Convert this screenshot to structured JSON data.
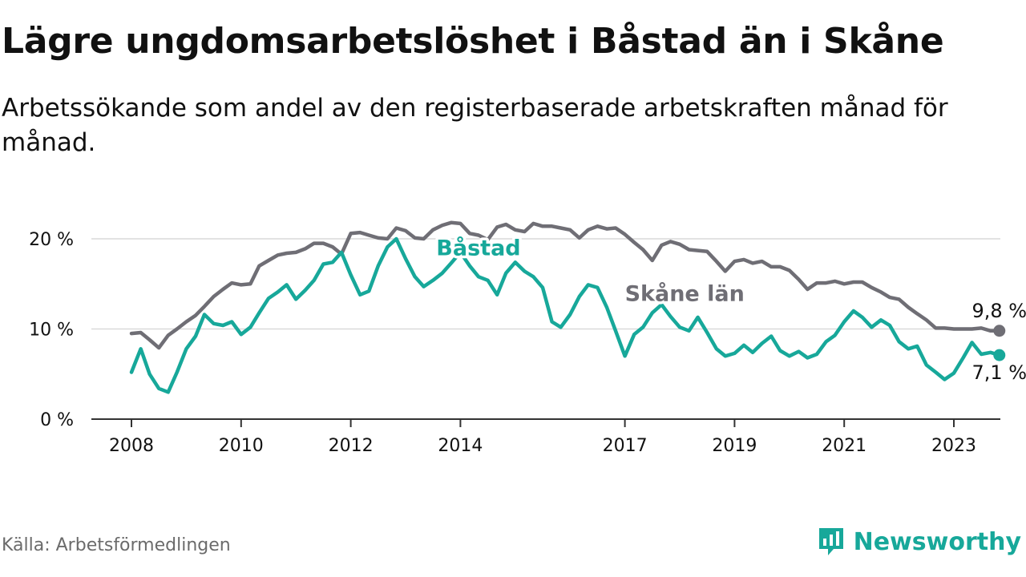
{
  "title": "Lägre ungdomsarbetslöshet i Båstad än i Skåne",
  "subtitle": "Arbetssökande som andel av den registerbaserade arbetskraften månad för månad.",
  "source": "Källa: Arbetsförmedlingen",
  "brand": {
    "name": "Newsworthy",
    "icon": "newsworthy-logo-icon",
    "color": "#17a89a"
  },
  "colors": {
    "bastad": "#17a89a",
    "skane": "#6f6e75",
    "grid": "#d9d9d9",
    "axis": "#333333",
    "text": "#111111"
  },
  "chart_data": {
    "type": "line",
    "title": "Lägre ungdomsarbetslöshet i Båstad än i Skåne",
    "xlabel": "",
    "ylabel": "",
    "xlim": [
      2007.9,
      2023.9
    ],
    "ylim": [
      0,
      22
    ],
    "x_ticks": [
      2008,
      2010,
      2012,
      2014,
      2017,
      2019,
      2021,
      2023
    ],
    "y_ticks": [
      0,
      10,
      20
    ],
    "y_tick_labels": [
      "0 %",
      "10 %",
      "20 %"
    ],
    "grid": true,
    "series": [
      {
        "name": "Skåne län",
        "label": "Skåne län",
        "color": "#6f6e75",
        "end_label": "9,8 %",
        "points": [
          [
            2008.0,
            9.5
          ],
          [
            2008.17,
            9.6
          ],
          [
            2008.33,
            8.8
          ],
          [
            2008.5,
            7.9
          ],
          [
            2008.67,
            9.3
          ],
          [
            2008.83,
            10.0
          ],
          [
            2009.0,
            10.8
          ],
          [
            2009.17,
            11.5
          ],
          [
            2009.33,
            12.5
          ],
          [
            2009.5,
            13.6
          ],
          [
            2009.67,
            14.4
          ],
          [
            2009.83,
            15.1
          ],
          [
            2010.0,
            14.9
          ],
          [
            2010.17,
            15.0
          ],
          [
            2010.33,
            17.0
          ],
          [
            2010.5,
            17.6
          ],
          [
            2010.67,
            18.2
          ],
          [
            2010.83,
            18.4
          ],
          [
            2011.0,
            18.5
          ],
          [
            2011.17,
            18.9
          ],
          [
            2011.33,
            19.5
          ],
          [
            2011.5,
            19.5
          ],
          [
            2011.67,
            19.1
          ],
          [
            2011.83,
            18.3
          ],
          [
            2012.0,
            20.6
          ],
          [
            2012.17,
            20.7
          ],
          [
            2012.33,
            20.4
          ],
          [
            2012.5,
            20.1
          ],
          [
            2012.67,
            20.0
          ],
          [
            2012.83,
            21.2
          ],
          [
            2013.0,
            20.9
          ],
          [
            2013.17,
            20.1
          ],
          [
            2013.33,
            20.0
          ],
          [
            2013.5,
            21.0
          ],
          [
            2013.67,
            21.5
          ],
          [
            2013.83,
            21.8
          ],
          [
            2014.0,
            21.7
          ],
          [
            2014.17,
            20.6
          ],
          [
            2014.33,
            20.4
          ],
          [
            2014.5,
            19.9
          ],
          [
            2014.67,
            21.3
          ],
          [
            2014.83,
            21.6
          ],
          [
            2015.0,
            21.0
          ],
          [
            2015.17,
            20.8
          ],
          [
            2015.33,
            21.7
          ],
          [
            2015.5,
            21.4
          ],
          [
            2015.67,
            21.4
          ],
          [
            2015.83,
            21.2
          ],
          [
            2016.0,
            21.0
          ],
          [
            2016.17,
            20.1
          ],
          [
            2016.33,
            21.0
          ],
          [
            2016.5,
            21.4
          ],
          [
            2016.67,
            21.1
          ],
          [
            2016.83,
            21.2
          ],
          [
            2017.0,
            20.5
          ],
          [
            2017.17,
            19.6
          ],
          [
            2017.33,
            18.8
          ],
          [
            2017.5,
            17.6
          ],
          [
            2017.67,
            19.3
          ],
          [
            2017.83,
            19.7
          ],
          [
            2018.0,
            19.4
          ],
          [
            2018.17,
            18.8
          ],
          [
            2018.33,
            18.7
          ],
          [
            2018.5,
            18.6
          ],
          [
            2018.67,
            17.5
          ],
          [
            2018.83,
            16.4
          ],
          [
            2019.0,
            17.5
          ],
          [
            2019.17,
            17.7
          ],
          [
            2019.33,
            17.3
          ],
          [
            2019.5,
            17.5
          ],
          [
            2019.67,
            16.9
          ],
          [
            2019.83,
            16.9
          ],
          [
            2020.0,
            16.5
          ],
          [
            2020.17,
            15.5
          ],
          [
            2020.33,
            14.4
          ],
          [
            2020.5,
            15.1
          ],
          [
            2020.67,
            15.1
          ],
          [
            2020.83,
            15.3
          ],
          [
            2021.0,
            15.0
          ],
          [
            2021.17,
            15.2
          ],
          [
            2021.33,
            15.2
          ],
          [
            2021.5,
            14.6
          ],
          [
            2021.67,
            14.1
          ],
          [
            2021.83,
            13.5
          ],
          [
            2022.0,
            13.3
          ],
          [
            2022.17,
            12.4
          ],
          [
            2022.33,
            11.7
          ],
          [
            2022.5,
            11.0
          ],
          [
            2022.67,
            10.1
          ],
          [
            2022.83,
            10.1
          ],
          [
            2023.0,
            10.0
          ],
          [
            2023.17,
            10.0
          ],
          [
            2023.33,
            10.0
          ],
          [
            2023.5,
            10.1
          ],
          [
            2023.67,
            9.8
          ],
          [
            2023.83,
            9.8
          ]
        ]
      },
      {
        "name": "Båstad",
        "label": "Båstad",
        "color": "#17a89a",
        "end_label": "7,1 %",
        "points": [
          [
            2008.0,
            5.2
          ],
          [
            2008.17,
            7.8
          ],
          [
            2008.33,
            5.0
          ],
          [
            2008.5,
            3.4
          ],
          [
            2008.67,
            3.0
          ],
          [
            2008.83,
            5.2
          ],
          [
            2009.0,
            7.8
          ],
          [
            2009.17,
            9.2
          ],
          [
            2009.33,
            11.6
          ],
          [
            2009.5,
            10.6
          ],
          [
            2009.67,
            10.4
          ],
          [
            2009.83,
            10.8
          ],
          [
            2010.0,
            9.4
          ],
          [
            2010.17,
            10.2
          ],
          [
            2010.33,
            11.8
          ],
          [
            2010.5,
            13.4
          ],
          [
            2010.67,
            14.1
          ],
          [
            2010.83,
            14.9
          ],
          [
            2011.0,
            13.3
          ],
          [
            2011.17,
            14.3
          ],
          [
            2011.33,
            15.4
          ],
          [
            2011.5,
            17.2
          ],
          [
            2011.67,
            17.4
          ],
          [
            2011.83,
            18.5
          ],
          [
            2012.0,
            16.0
          ],
          [
            2012.17,
            13.8
          ],
          [
            2012.33,
            14.2
          ],
          [
            2012.5,
            17.0
          ],
          [
            2012.67,
            19.1
          ],
          [
            2012.83,
            20.0
          ],
          [
            2013.0,
            17.8
          ],
          [
            2013.17,
            15.8
          ],
          [
            2013.33,
            14.7
          ],
          [
            2013.5,
            15.4
          ],
          [
            2013.67,
            16.2
          ],
          [
            2013.83,
            17.3
          ],
          [
            2014.0,
            18.5
          ],
          [
            2014.17,
            17.0
          ],
          [
            2014.33,
            15.8
          ],
          [
            2014.5,
            15.4
          ],
          [
            2014.67,
            13.8
          ],
          [
            2014.83,
            16.2
          ],
          [
            2015.0,
            17.4
          ],
          [
            2015.17,
            16.4
          ],
          [
            2015.33,
            15.8
          ],
          [
            2015.5,
            14.6
          ],
          [
            2015.67,
            10.8
          ],
          [
            2015.83,
            10.2
          ],
          [
            2016.0,
            11.6
          ],
          [
            2016.17,
            13.6
          ],
          [
            2016.33,
            14.9
          ],
          [
            2016.5,
            14.6
          ],
          [
            2016.67,
            12.4
          ],
          [
            2016.83,
            9.8
          ],
          [
            2017.0,
            7.0
          ],
          [
            2017.17,
            9.4
          ],
          [
            2017.33,
            10.2
          ],
          [
            2017.5,
            11.8
          ],
          [
            2017.67,
            12.7
          ],
          [
            2017.83,
            11.4
          ],
          [
            2018.0,
            10.2
          ],
          [
            2018.17,
            9.8
          ],
          [
            2018.33,
            11.3
          ],
          [
            2018.5,
            9.6
          ],
          [
            2018.67,
            7.8
          ],
          [
            2018.83,
            7.0
          ],
          [
            2019.0,
            7.3
          ],
          [
            2019.17,
            8.2
          ],
          [
            2019.33,
            7.4
          ],
          [
            2019.5,
            8.4
          ],
          [
            2019.67,
            9.2
          ],
          [
            2019.83,
            7.6
          ],
          [
            2020.0,
            7.0
          ],
          [
            2020.17,
            7.5
          ],
          [
            2020.33,
            6.8
          ],
          [
            2020.5,
            7.2
          ],
          [
            2020.67,
            8.6
          ],
          [
            2020.83,
            9.3
          ],
          [
            2021.0,
            10.8
          ],
          [
            2021.17,
            12.0
          ],
          [
            2021.33,
            11.3
          ],
          [
            2021.5,
            10.2
          ],
          [
            2021.67,
            11.0
          ],
          [
            2021.83,
            10.4
          ],
          [
            2022.0,
            8.6
          ],
          [
            2022.17,
            7.8
          ],
          [
            2022.33,
            8.1
          ],
          [
            2022.5,
            6.0
          ],
          [
            2022.67,
            5.2
          ],
          [
            2022.83,
            4.4
          ],
          [
            2023.0,
            5.1
          ],
          [
            2023.17,
            6.8
          ],
          [
            2023.33,
            8.5
          ],
          [
            2023.5,
            7.2
          ],
          [
            2023.67,
            7.4
          ],
          [
            2023.83,
            7.1
          ]
        ]
      }
    ]
  }
}
